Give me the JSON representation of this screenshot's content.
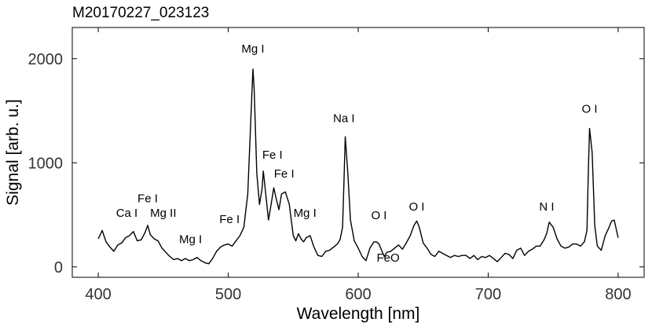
{
  "chart_data": {
    "type": "line",
    "title": "M20170227_023123",
    "xlabel": "Wavelength [nm]",
    "ylabel": "Signal [arb. u.]",
    "xlim": [
      380,
      820
    ],
    "ylim": [
      -100,
      2300
    ],
    "xticks": [
      400,
      500,
      600,
      700,
      800
    ],
    "yticks": [
      0,
      1000,
      2000
    ],
    "grid": false,
    "series": [
      {
        "x": [
          400,
          403,
          406,
          409,
          412,
          415,
          418,
          421,
          424,
          427,
          430,
          433,
          436,
          438,
          440,
          443,
          446,
          449,
          452,
          455,
          458,
          461,
          464,
          467,
          470,
          473,
          476,
          479,
          482,
          485,
          488,
          491,
          494,
          497,
          500,
          503,
          506,
          509,
          512,
          515,
          518,
          519,
          520,
          522,
          524,
          526,
          527,
          528,
          531,
          533,
          535,
          537,
          539,
          541,
          544,
          547,
          550,
          552,
          554,
          556,
          558,
          560,
          563,
          566,
          569,
          572,
          575,
          578,
          581,
          584,
          586,
          588,
          589,
          590,
          592,
          594,
          597,
          600,
          603,
          606,
          609,
          612,
          614,
          616,
          618,
          620,
          622,
          625,
          628,
          631,
          634,
          637,
          640,
          643,
          645,
          647,
          650,
          653,
          656,
          659,
          662,
          665,
          668,
          671,
          674,
          677,
          680,
          683,
          686,
          689,
          692,
          695,
          698,
          701,
          704,
          707,
          710,
          713,
          716,
          719,
          722,
          725,
          728,
          731,
          734,
          737,
          740,
          743,
          745,
          747,
          750,
          753,
          756,
          759,
          762,
          765,
          768,
          771,
          774,
          776,
          777,
          778,
          780,
          782,
          784,
          787,
          790,
          793,
          795,
          797,
          800
        ],
        "values": [
          270,
          350,
          240,
          190,
          150,
          210,
          230,
          280,
          300,
          340,
          250,
          260,
          330,
          400,
          310,
          270,
          250,
          180,
          140,
          100,
          70,
          80,
          60,
          80,
          60,
          70,
          90,
          60,
          40,
          30,
          80,
          150,
          190,
          210,
          220,
          200,
          250,
          300,
          380,
          700,
          1600,
          1900,
          1700,
          900,
          600,
          750,
          920,
          800,
          450,
          600,
          760,
          650,
          550,
          700,
          720,
          600,
          300,
          250,
          320,
          270,
          240,
          280,
          300,
          190,
          110,
          100,
          150,
          160,
          190,
          220,
          260,
          380,
          800,
          1250,
          900,
          450,
          250,
          180,
          100,
          60,
          180,
          240,
          240,
          220,
          160,
          100,
          140,
          150,
          180,
          210,
          170,
          230,
          300,
          400,
          440,
          380,
          230,
          180,
          120,
          100,
          150,
          130,
          110,
          90,
          110,
          100,
          110,
          110,
          80,
          110,
          70,
          100,
          90,
          110,
          80,
          50,
          90,
          130,
          120,
          80,
          160,
          180,
          110,
          150,
          170,
          200,
          200,
          260,
          320,
          430,
          380,
          270,
          200,
          180,
          190,
          220,
          220,
          200,
          240,
          350,
          900,
          1330,
          1100,
          400,
          200,
          160,
          300,
          380,
          440,
          450,
          280
        ]
      }
    ],
    "annotations": [
      {
        "text": "Ca I",
        "x": 422,
        "y": 480
      },
      {
        "text": "Fe I",
        "x": 438,
        "y": 620
      },
      {
        "text": "Mg II",
        "x": 450,
        "y": 480
      },
      {
        "text": "Mg I",
        "x": 471,
        "y": 230
      },
      {
        "text": "Fe I",
        "x": 501,
        "y": 420
      },
      {
        "text": "Mg I",
        "x": 519,
        "y": 2060
      },
      {
        "text": "Fe I",
        "x": 534,
        "y": 1040
      },
      {
        "text": "Fe I",
        "x": 543,
        "y": 860
      },
      {
        "text": "Mg I",
        "x": 559,
        "y": 480
      },
      {
        "text": "Na I",
        "x": 589,
        "y": 1390
      },
      {
        "text": "O I",
        "x": 616,
        "y": 460
      },
      {
        "text": "O I",
        "x": 645,
        "y": 540
      },
      {
        "text": "FeO",
        "x": 623,
        "y": 50
      },
      {
        "text": "N I",
        "x": 745,
        "y": 540
      },
      {
        "text": "O I",
        "x": 778,
        "y": 1480
      }
    ]
  }
}
